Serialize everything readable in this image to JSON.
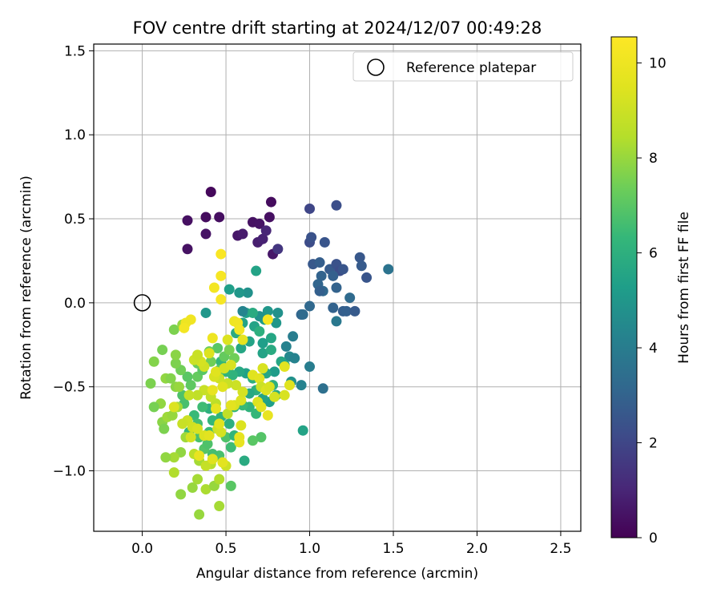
{
  "chart_data": {
    "type": "scatter",
    "title": "FOV centre drift starting at 2024/12/07 00:49:28",
    "xlabel": "Angular distance from reference (arcmin)",
    "ylabel": "Rotation from reference (arcmin)",
    "xlim": [
      -0.29,
      2.62
    ],
    "ylim": [
      -1.36,
      1.54
    ],
    "xticks": [
      "0.0",
      "0.5",
      "1.0",
      "1.5",
      "2.0",
      "2.5"
    ],
    "xtick_values": [
      0.0,
      0.5,
      1.0,
      1.5,
      2.0,
      2.5
    ],
    "yticks": [
      "−1.0",
      "−0.5",
      "0.0",
      "0.5",
      "1.0",
      "1.5"
    ],
    "ytick_values": [
      -1.0,
      -0.5,
      0.0,
      0.5,
      1.0,
      1.5
    ],
    "grid": true,
    "legend": {
      "position": "top-right",
      "entries": [
        "Reference platepar"
      ]
    },
    "reference_point": {
      "x": 0.0,
      "y": 0.0,
      "label": "Reference platepar"
    },
    "colorbar": {
      "label": "Hours from first FF file",
      "colormap": "viridis",
      "range": [
        0,
        10.55
      ],
      "ticks": [
        "0",
        "2",
        "4",
        "6",
        "8",
        "10"
      ],
      "tick_values": [
        0,
        2,
        4,
        6,
        8,
        10
      ]
    },
    "points": [
      [
        0.41,
        0.66,
        0.2
      ],
      [
        0.38,
        0.51,
        0.3
      ],
      [
        0.46,
        0.51,
        0.35
      ],
      [
        0.27,
        0.49,
        0.4
      ],
      [
        0.38,
        0.41,
        0.5
      ],
      [
        0.27,
        0.32,
        0.45
      ],
      [
        0.77,
        0.6,
        0.3
      ],
      [
        0.76,
        0.51,
        0.4
      ],
      [
        0.66,
        0.48,
        0.45
      ],
      [
        0.7,
        0.47,
        0.5
      ],
      [
        0.57,
        0.4,
        0.6
      ],
      [
        0.6,
        0.41,
        0.7
      ],
      [
        0.69,
        0.36,
        0.8
      ],
      [
        0.72,
        0.38,
        0.9
      ],
      [
        0.74,
        0.43,
        1.0
      ],
      [
        0.78,
        0.29,
        0.6
      ],
      [
        0.81,
        0.32,
        1.5
      ],
      [
        1.0,
        0.56,
        2.0
      ],
      [
        1.16,
        0.58,
        2.3
      ],
      [
        1.0,
        0.36,
        2.2
      ],
      [
        1.01,
        0.39,
        2.4
      ],
      [
        1.09,
        0.36,
        2.5
      ],
      [
        1.02,
        0.23,
        2.6
      ],
      [
        1.06,
        0.24,
        2.8
      ],
      [
        1.12,
        0.2,
        2.7
      ],
      [
        1.16,
        0.23,
        2.4
      ],
      [
        1.18,
        0.19,
        2.2
      ],
      [
        1.2,
        0.2,
        2.5
      ],
      [
        1.14,
        0.16,
        2.9
      ],
      [
        1.07,
        0.16,
        3.0
      ],
      [
        1.05,
        0.11,
        3.1
      ],
      [
        1.08,
        0.07,
        3.2
      ],
      [
        1.06,
        0.07,
        2.9
      ],
      [
        1.16,
        0.09,
        3.0
      ],
      [
        1.3,
        0.27,
        2.6
      ],
      [
        1.31,
        0.22,
        2.7
      ],
      [
        1.34,
        0.15,
        2.5
      ],
      [
        1.24,
        0.03,
        3.3
      ],
      [
        1.47,
        0.2,
        3.6
      ],
      [
        1.0,
        -0.02,
        3.2
      ],
      [
        0.95,
        -0.07,
        3.1
      ],
      [
        0.96,
        -0.07,
        3.3
      ],
      [
        1.14,
        -0.03,
        3.0
      ],
      [
        1.2,
        -0.05,
        2.8
      ],
      [
        1.22,
        -0.05,
        2.9
      ],
      [
        1.27,
        -0.05,
        2.7
      ],
      [
        1.16,
        -0.11,
        3.8
      ],
      [
        0.9,
        -0.2,
        4.0
      ],
      [
        0.86,
        -0.26,
        4.2
      ],
      [
        0.88,
        -0.32,
        4.5
      ],
      [
        0.91,
        -0.33,
        4.2
      ],
      [
        1.0,
        -0.38,
        4.0
      ],
      [
        1.08,
        -0.51,
        3.5
      ],
      [
        0.95,
        -0.49,
        4.2
      ],
      [
        0.89,
        -0.47,
        4.8
      ],
      [
        0.81,
        -0.06,
        4.8
      ],
      [
        0.75,
        -0.05,
        5.0
      ],
      [
        0.8,
        -0.12,
        5.0
      ],
      [
        0.73,
        -0.1,
        5.2
      ],
      [
        0.7,
        -0.08,
        4.8
      ],
      [
        0.68,
        0.19,
        5.5
      ],
      [
        0.63,
        0.06,
        4.8
      ],
      [
        0.58,
        0.06,
        5.0
      ],
      [
        0.52,
        0.08,
        5.3
      ],
      [
        0.38,
        -0.06,
        5.0
      ],
      [
        0.62,
        -0.06,
        5.3
      ],
      [
        0.66,
        -0.06,
        5.8
      ],
      [
        0.6,
        -0.12,
        5.5
      ],
      [
        0.67,
        -0.14,
        5.5
      ],
      [
        0.77,
        -0.21,
        5.6
      ],
      [
        0.7,
        -0.17,
        6.0
      ],
      [
        0.72,
        -0.24,
        5.3
      ],
      [
        0.64,
        -0.23,
        5.5
      ],
      [
        0.59,
        -0.27,
        5.6
      ],
      [
        0.56,
        -0.18,
        5.8
      ],
      [
        0.72,
        -0.3,
        5.5
      ],
      [
        0.77,
        -0.28,
        5.8
      ],
      [
        0.83,
        -0.35,
        5.6
      ],
      [
        0.85,
        -0.37,
        5.5
      ],
      [
        0.79,
        -0.41,
        5.2
      ],
      [
        0.74,
        -0.42,
        5.6
      ],
      [
        0.66,
        -0.45,
        6.0
      ],
      [
        0.62,
        -0.42,
        5.4
      ],
      [
        0.58,
        -0.41,
        5.7
      ],
      [
        0.54,
        -0.43,
        6.1
      ],
      [
        0.5,
        -0.41,
        6.2
      ],
      [
        0.47,
        -0.35,
        6.3
      ],
      [
        0.78,
        -0.49,
        6.0
      ],
      [
        0.8,
        -0.55,
        5.8
      ],
      [
        0.76,
        -0.59,
        5.3
      ],
      [
        0.72,
        -0.57,
        5.5
      ],
      [
        0.68,
        -0.52,
        6.0
      ],
      [
        0.64,
        -0.54,
        5.7
      ],
      [
        0.64,
        -0.62,
        6.1
      ],
      [
        0.68,
        -0.66,
        6.3
      ],
      [
        0.6,
        -0.61,
        6.4
      ],
      [
        0.55,
        -0.62,
        6.2
      ],
      [
        0.52,
        -0.72,
        6.0
      ],
      [
        0.47,
        -0.68,
        6.1
      ],
      [
        0.42,
        -0.7,
        6.3
      ],
      [
        0.4,
        -0.63,
        6.0
      ],
      [
        0.36,
        -0.62,
        6.5
      ],
      [
        0.31,
        -0.67,
        6.4
      ],
      [
        0.33,
        -0.72,
        6.6
      ],
      [
        0.28,
        -0.77,
        6.3
      ],
      [
        0.34,
        -0.8,
        6.7
      ],
      [
        0.4,
        -0.77,
        6.4
      ],
      [
        0.5,
        -0.8,
        6.8
      ],
      [
        0.55,
        -0.79,
        6.2
      ],
      [
        0.61,
        -0.94,
        5.8
      ],
      [
        0.53,
        -0.86,
        6.5
      ],
      [
        0.46,
        -0.91,
        6.7
      ],
      [
        0.42,
        -0.9,
        6.6
      ],
      [
        0.37,
        -0.87,
        6.9
      ],
      [
        0.39,
        -0.84,
        6.8
      ],
      [
        0.96,
        -0.76,
        5.5
      ],
      [
        0.71,
        -0.8,
        6.9
      ],
      [
        0.66,
        -0.82,
        7.0
      ],
      [
        0.53,
        -1.09,
        7.0
      ],
      [
        0.25,
        -0.6,
        6.7
      ],
      [
        0.24,
        -0.55,
        6.8
      ],
      [
        0.29,
        -0.49,
        7.1
      ],
      [
        0.27,
        -0.44,
        7.0
      ],
      [
        0.33,
        -0.44,
        7.2
      ],
      [
        0.36,
        -0.4,
        7.0
      ],
      [
        0.33,
        -0.36,
        7.3
      ],
      [
        0.41,
        -0.35,
        7.4
      ],
      [
        0.46,
        -0.4,
        7.0
      ],
      [
        0.49,
        -0.32,
        7.2
      ],
      [
        0.55,
        -0.33,
        7.4
      ],
      [
        0.52,
        -0.28,
        7.5
      ],
      [
        0.45,
        -0.27,
        7.0
      ],
      [
        0.4,
        -0.29,
        7.3
      ],
      [
        0.23,
        -0.4,
        7.4
      ],
      [
        0.2,
        -0.36,
        7.6
      ],
      [
        0.2,
        -0.31,
        7.8
      ],
      [
        0.19,
        -0.16,
        7.6
      ],
      [
        0.24,
        -0.13,
        8.0
      ],
      [
        0.12,
        -0.28,
        7.5
      ],
      [
        0.07,
        -0.35,
        7.7
      ],
      [
        0.05,
        -0.48,
        7.6
      ],
      [
        0.14,
        -0.45,
        7.9
      ],
      [
        0.17,
        -0.45,
        7.7
      ],
      [
        0.2,
        -0.5,
        7.8
      ],
      [
        0.22,
        -0.5,
        8.0
      ],
      [
        0.11,
        -0.6,
        7.9
      ],
      [
        0.07,
        -0.62,
        7.5
      ],
      [
        0.12,
        -0.71,
        7.8
      ],
      [
        0.15,
        -0.68,
        8.1
      ],
      [
        0.13,
        -0.75,
        7.6
      ],
      [
        0.18,
        -0.67,
        8.0
      ],
      [
        0.21,
        -0.62,
        8.2
      ],
      [
        0.26,
        -0.8,
        8.1
      ],
      [
        0.23,
        -0.89,
        7.9
      ],
      [
        0.19,
        -0.92,
        8.2
      ],
      [
        0.14,
        -0.92,
        7.9
      ],
      [
        0.19,
        -1.01,
        8.4
      ],
      [
        0.3,
        -1.1,
        8.0
      ],
      [
        0.33,
        -1.05,
        8.2
      ],
      [
        0.38,
        -1.11,
        8.3
      ],
      [
        0.43,
        -1.09,
        8.0
      ],
      [
        0.46,
        -1.21,
        8.2
      ],
      [
        0.34,
        -1.26,
        8.0
      ],
      [
        0.23,
        -1.14,
        7.9
      ],
      [
        0.46,
        -1.05,
        8.4
      ],
      [
        0.41,
        -0.96,
        8.5
      ],
      [
        0.34,
        -0.94,
        8.2
      ],
      [
        0.31,
        -0.9,
        8.6
      ],
      [
        0.38,
        -0.97,
        8.8
      ],
      [
        0.5,
        -0.97,
        9.0
      ],
      [
        0.51,
        -0.66,
        8.7
      ],
      [
        0.44,
        -0.6,
        8.6
      ],
      [
        0.41,
        -0.56,
        8.8
      ],
      [
        0.37,
        -0.52,
        8.9
      ],
      [
        0.33,
        -0.55,
        8.7
      ],
      [
        0.28,
        -0.55,
        8.8
      ],
      [
        0.27,
        -0.7,
        9.0
      ],
      [
        0.3,
        -0.74,
        9.1
      ],
      [
        0.24,
        -0.72,
        8.9
      ],
      [
        0.29,
        -0.8,
        9.2
      ],
      [
        0.33,
        -0.75,
        9.3
      ],
      [
        0.37,
        -0.79,
        9.4
      ],
      [
        0.45,
        -0.75,
        9.0
      ],
      [
        0.47,
        -0.77,
        9.2
      ],
      [
        0.55,
        -0.61,
        9.3
      ],
      [
        0.59,
        -0.58,
        9.4
      ],
      [
        0.6,
        -0.53,
        9.2
      ],
      [
        0.56,
        -0.49,
        9.0
      ],
      [
        0.51,
        -0.48,
        8.9
      ],
      [
        0.46,
        -0.45,
        9.0
      ],
      [
        0.43,
        -0.44,
        9.3
      ],
      [
        0.37,
        -0.38,
        9.1
      ],
      [
        0.35,
        -0.35,
        9.2
      ],
      [
        0.31,
        -0.34,
        9.0
      ],
      [
        0.33,
        -0.31,
        8.9
      ],
      [
        0.4,
        -0.3,
        9.4
      ],
      [
        0.44,
        -0.41,
        9.5
      ],
      [
        0.49,
        -0.39,
        9.2
      ],
      [
        0.53,
        -0.37,
        9.3
      ],
      [
        0.51,
        -0.22,
        9.4
      ],
      [
        0.6,
        -0.22,
        9.7
      ],
      [
        0.66,
        -0.43,
        9.5
      ],
      [
        0.7,
        -0.45,
        9.6
      ],
      [
        0.72,
        -0.39,
        9.3
      ],
      [
        0.71,
        -0.5,
        9.0
      ],
      [
        0.74,
        -0.52,
        9.4
      ],
      [
        0.79,
        -0.56,
        9.2
      ],
      [
        0.76,
        -0.5,
        9.3
      ],
      [
        0.85,
        -0.38,
        9.6
      ],
      [
        0.88,
        -0.49,
        9.5
      ],
      [
        0.69,
        -0.59,
        9.4
      ],
      [
        0.71,
        -0.62,
        9.6
      ],
      [
        0.75,
        -0.67,
        9.8
      ],
      [
        0.59,
        -0.73,
        9.4
      ],
      [
        0.58,
        -0.8,
        9.7
      ],
      [
        0.58,
        -0.83,
        9.8
      ],
      [
        0.48,
        -0.95,
        9.6
      ],
      [
        0.42,
        -0.93,
        9.5
      ],
      [
        0.34,
        -0.91,
        9.8
      ],
      [
        0.4,
        -0.79,
        9.6
      ],
      [
        0.46,
        -0.72,
        9.5
      ],
      [
        0.44,
        -0.63,
        9.7
      ],
      [
        0.42,
        -0.52,
        9.8
      ],
      [
        0.48,
        -0.5,
        9.5
      ],
      [
        0.53,
        -0.61,
        9.6
      ],
      [
        0.55,
        -0.11,
        10.0
      ],
      [
        0.57,
        -0.12,
        10.1
      ],
      [
        0.58,
        -0.16,
        10.2
      ],
      [
        0.47,
        0.16,
        10.3
      ],
      [
        0.47,
        0.29,
        10.4
      ],
      [
        0.47,
        0.02,
        10.3
      ],
      [
        0.43,
        0.09,
        10.2
      ],
      [
        0.29,
        -0.1,
        10.1
      ],
      [
        0.26,
        -0.12,
        10.0
      ],
      [
        0.25,
        -0.15,
        10.2
      ],
      [
        0.42,
        -0.21,
        10.0
      ],
      [
        0.75,
        -0.1,
        10.3
      ],
      [
        0.19,
        -0.62,
        9.4
      ],
      [
        0.6,
        -0.05,
        4.3
      ],
      [
        0.85,
        -0.55,
        9.3
      ]
    ]
  }
}
